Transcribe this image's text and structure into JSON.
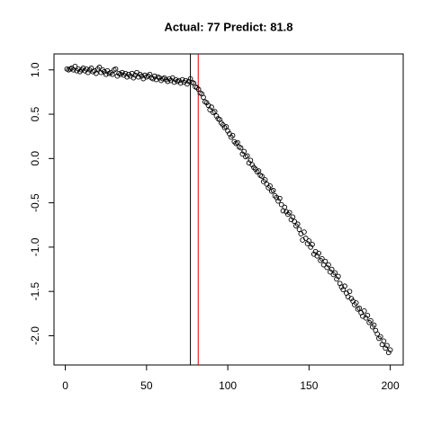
{
  "chart_data": {
    "type": "scatter",
    "title": "Actual: 77 Predict: 81.8",
    "xlim": [
      -6.96,
      207.96
    ],
    "ylim": [
      -2.33,
      1.18
    ],
    "xticks": [
      0,
      50,
      100,
      150,
      200
    ],
    "yticks": [
      {
        "value": 1.0,
        "label": "1.0"
      },
      {
        "value": 0.5,
        "label": "0.5"
      },
      {
        "value": 0.0,
        "label": "0.0"
      },
      {
        "value": -0.5,
        "label": "-0.5"
      },
      {
        "value": -1.0,
        "label": "-1.0"
      },
      {
        "value": -1.5,
        "label": "-1.5"
      },
      {
        "value": -2.0,
        "label": "-2.0"
      }
    ],
    "vlines": [
      {
        "x": 77,
        "color": "#000000"
      },
      {
        "x": 81.8,
        "color": "#dd0000"
      }
    ],
    "series": [
      {
        "color": "#000000",
        "x": [
          1,
          2,
          3,
          4,
          5,
          6,
          7,
          8,
          9,
          10,
          11,
          12,
          13,
          14,
          15,
          16,
          17,
          18,
          19,
          20,
          21,
          22,
          23,
          24,
          25,
          26,
          27,
          28,
          29,
          30,
          31,
          32,
          33,
          34,
          35,
          36,
          37,
          38,
          39,
          40,
          41,
          42,
          43,
          44,
          45,
          46,
          47,
          48,
          49,
          50,
          51,
          52,
          53,
          54,
          55,
          56,
          57,
          58,
          59,
          60,
          61,
          62,
          63,
          64,
          65,
          66,
          67,
          68,
          69,
          70,
          71,
          72,
          73,
          74,
          75,
          76,
          77,
          78,
          79,
          80,
          81,
          82,
          83,
          84,
          85,
          86,
          87,
          88,
          89,
          90,
          91,
          92,
          93,
          94,
          95,
          96,
          97,
          98,
          99,
          100,
          101,
          102,
          103,
          104,
          105,
          106,
          107,
          108,
          109,
          110,
          111,
          112,
          113,
          114,
          115,
          116,
          117,
          118,
          119,
          120,
          121,
          122,
          123,
          124,
          125,
          126,
          127,
          128,
          129,
          130,
          131,
          132,
          133,
          134,
          135,
          136,
          137,
          138,
          139,
          140,
          141,
          142,
          143,
          144,
          145,
          146,
          147,
          148,
          149,
          150,
          151,
          152,
          153,
          154,
          155,
          156,
          157,
          158,
          159,
          160,
          161,
          162,
          163,
          164,
          165,
          166,
          167,
          168,
          169,
          170,
          171,
          172,
          173,
          174,
          175,
          176,
          177,
          178,
          179,
          180,
          181,
          182,
          183,
          184,
          185,
          186,
          187,
          188,
          189,
          190,
          191,
          192,
          193,
          194,
          195,
          196,
          197,
          198,
          199,
          200
        ],
        "values": [
          1.01,
          1.0,
          1.01,
          1.02,
          1.0,
          1.04,
          0.99,
          1.01,
          0.98,
          1.0,
          1.02,
          0.99,
          1.01,
          0.97,
          1.0,
          1.02,
          0.98,
          0.99,
          0.96,
          1.01,
          1.03,
          0.97,
          1.0,
          0.98,
          0.95,
          0.99,
          0.96,
          0.97,
          0.95,
          1.0,
          1.01,
          0.93,
          0.96,
          0.95,
          0.97,
          0.94,
          0.96,
          0.92,
          0.95,
          0.93,
          0.96,
          0.91,
          0.94,
          0.97,
          0.92,
          0.95,
          0.93,
          0.9,
          0.94,
          0.92,
          0.93,
          0.95,
          0.91,
          0.9,
          0.93,
          0.89,
          0.92,
          0.91,
          0.88,
          0.9,
          0.91,
          0.89,
          0.87,
          0.9,
          0.88,
          0.91,
          0.86,
          0.89,
          0.87,
          0.88,
          0.85,
          0.89,
          0.86,
          0.88,
          0.84,
          0.87,
          0.9,
          0.86,
          0.85,
          0.81,
          0.8,
          0.78,
          0.74,
          0.73,
          0.69,
          0.64,
          0.63,
          0.6,
          0.55,
          0.58,
          0.52,
          0.53,
          0.48,
          0.45,
          0.44,
          0.4,
          0.38,
          0.35,
          0.36,
          0.31,
          0.28,
          0.24,
          0.26,
          0.19,
          0.17,
          0.18,
          0.13,
          0.12,
          0.05,
          0.08,
          0.02,
          0.03,
          -0.05,
          -0.02,
          -0.07,
          -0.1,
          -0.12,
          -0.15,
          -0.14,
          -0.19,
          -0.2,
          -0.26,
          -0.24,
          -0.29,
          -0.33,
          -0.31,
          -0.37,
          -0.36,
          -0.42,
          -0.44,
          -0.48,
          -0.45,
          -0.52,
          -0.59,
          -0.55,
          -0.6,
          -0.63,
          -0.61,
          -0.69,
          -0.66,
          -0.71,
          -0.76,
          -0.74,
          -0.8,
          -0.85,
          -0.92,
          -0.83,
          -0.9,
          -0.96,
          -0.93,
          -1.0,
          -0.97,
          -1.08,
          -1.05,
          -1.1,
          -1.07,
          -1.15,
          -1.13,
          -1.2,
          -1.16,
          -1.23,
          -1.2,
          -1.28,
          -1.25,
          -1.31,
          -1.29,
          -1.36,
          -1.33,
          -1.41,
          -1.45,
          -1.48,
          -1.44,
          -1.52,
          -1.56,
          -1.5,
          -1.58,
          -1.61,
          -1.65,
          -1.63,
          -1.7,
          -1.69,
          -1.74,
          -1.78,
          -1.72,
          -1.8,
          -1.77,
          -1.85,
          -1.83,
          -1.9,
          -1.88,
          -1.94,
          -1.98,
          -2.03,
          -2.01,
          -2.1,
          -2.06,
          -2.14,
          -2.11,
          -2.19,
          -2.16
        ]
      }
    ]
  }
}
